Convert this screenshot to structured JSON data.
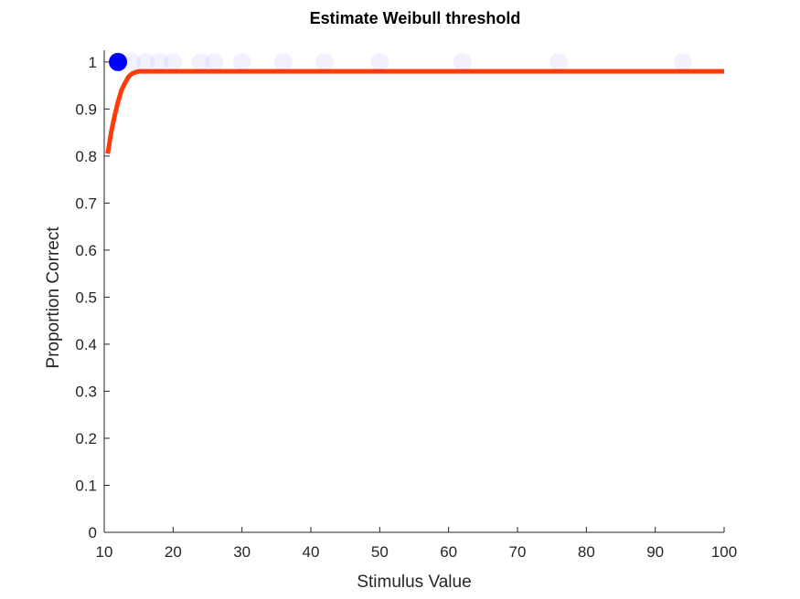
{
  "chart_data": {
    "type": "scatter",
    "title": "Estimate Weibull threshold",
    "xlabel": "Stimulus Value",
    "ylabel": "Proportion Correct",
    "xlim": [
      10,
      100
    ],
    "ylim": [
      0,
      1.025
    ],
    "xticks": [
      "10",
      "20",
      "30",
      "40",
      "50",
      "60",
      "70",
      "80",
      "90",
      "100"
    ],
    "yticks": [
      "0",
      "0.1",
      "0.2",
      "0.3",
      "0.4",
      "0.5",
      "0.6",
      "0.7",
      "0.8",
      "0.9",
      "1"
    ],
    "grid": false,
    "colors": {
      "points": "#0000ff",
      "fit": "#ff3b0a",
      "axes": "#262626"
    },
    "faded_points": [
      {
        "x": 14,
        "y": 1
      },
      {
        "x": 16,
        "y": 1
      },
      {
        "x": 18,
        "y": 1
      },
      {
        "x": 20,
        "y": 1
      },
      {
        "x": 24,
        "y": 1
      },
      {
        "x": 26,
        "y": 1
      },
      {
        "x": 30,
        "y": 1
      },
      {
        "x": 36,
        "y": 1
      },
      {
        "x": 42,
        "y": 1
      },
      {
        "x": 50,
        "y": 1
      },
      {
        "x": 62,
        "y": 1
      },
      {
        "x": 76,
        "y": 1
      },
      {
        "x": 94,
        "y": 1
      }
    ],
    "highlight_point": {
      "x": 12,
      "y": 1
    },
    "fit_curve": {
      "x": [
        10.5,
        11,
        11.5,
        12,
        12.5,
        13,
        13.5,
        14,
        14.5,
        15,
        16,
        18,
        20,
        30,
        50,
        100
      ],
      "y": [
        0.805,
        0.85,
        0.885,
        0.915,
        0.94,
        0.955,
        0.968,
        0.975,
        0.978,
        0.98,
        0.98,
        0.98,
        0.98,
        0.98,
        0.98,
        0.98
      ]
    }
  }
}
